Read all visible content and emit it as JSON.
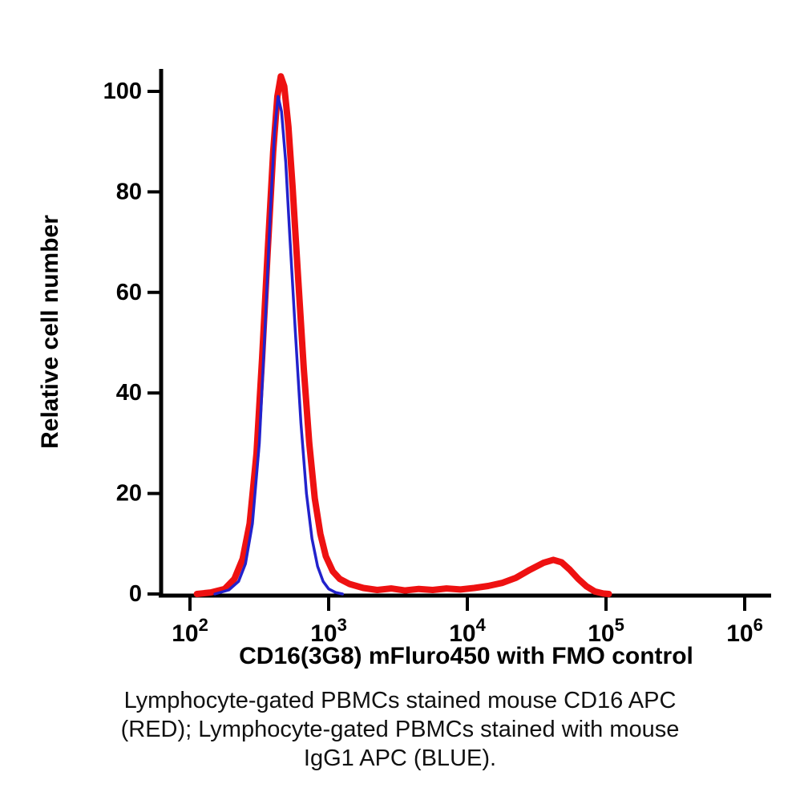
{
  "figure": {
    "background": "#ffffff",
    "caption": {
      "lines": [
        "Lymphocyte-gated PBMCs stained mouse CD16 APC",
        "(RED); Lymphocyte-gated PBMCs stained with mouse",
        "IgG1 APC (BLUE)."
      ]
    }
  },
  "chart_data": {
    "type": "line",
    "subtype": "flow-cytometry-histogram",
    "title": "",
    "xlabel": "CD16(3G8) mFluro450 with FMO control",
    "ylabel": "Relative cell number",
    "x_scale": "log10",
    "x_range_log10": [
      2,
      6
    ],
    "ylim": [
      0,
      100
    ],
    "grid": false,
    "legend": "none (series colors described in caption)",
    "y_ticks": [
      0,
      20,
      40,
      60,
      80,
      100
    ],
    "x_ticks": [
      {
        "mantissa": "10",
        "exponent": "2",
        "log10": 2
      },
      {
        "mantissa": "10",
        "exponent": "3",
        "log10": 3
      },
      {
        "mantissa": "10",
        "exponent": "4",
        "log10": 4
      },
      {
        "mantissa": "10",
        "exponent": "5",
        "log10": 5
      },
      {
        "mantissa": "10",
        "exponent": "6",
        "log10": 6
      }
    ],
    "axis_color": "#000000",
    "series": [
      {
        "name": "Lymphocyte-gated PBMCs stained mouse CD16 APC (RED)",
        "id": "cd16-apc-curve",
        "color": "#ee1111",
        "line_width": 8,
        "peaks": [
          {
            "x_approx": 450,
            "height": 103
          },
          {
            "x_approx": 42000,
            "height": 6.8
          }
        ],
        "points_log10x_y": [
          [
            2.05,
            0
          ],
          [
            2.15,
            0.3
          ],
          [
            2.25,
            1
          ],
          [
            2.32,
            3
          ],
          [
            2.38,
            7
          ],
          [
            2.43,
            14
          ],
          [
            2.48,
            28
          ],
          [
            2.52,
            47
          ],
          [
            2.56,
            68
          ],
          [
            2.6,
            88
          ],
          [
            2.63,
            99
          ],
          [
            2.655,
            103
          ],
          [
            2.68,
            101
          ],
          [
            2.71,
            93
          ],
          [
            2.74,
            81
          ],
          [
            2.78,
            63
          ],
          [
            2.82,
            45
          ],
          [
            2.86,
            30
          ],
          [
            2.9,
            19
          ],
          [
            2.94,
            12
          ],
          [
            2.98,
            7.5
          ],
          [
            3.03,
            4.5
          ],
          [
            3.08,
            3
          ],
          [
            3.15,
            2
          ],
          [
            3.25,
            1.2
          ],
          [
            3.35,
            0.8
          ],
          [
            3.45,
            1.1
          ],
          [
            3.55,
            0.7
          ],
          [
            3.65,
            1.0
          ],
          [
            3.75,
            0.8
          ],
          [
            3.85,
            1.1
          ],
          [
            3.95,
            0.9
          ],
          [
            4.05,
            1.2
          ],
          [
            4.15,
            1.6
          ],
          [
            4.25,
            2.2
          ],
          [
            4.35,
            3.2
          ],
          [
            4.45,
            4.8
          ],
          [
            4.55,
            6.2
          ],
          [
            4.62,
            6.8
          ],
          [
            4.68,
            6.3
          ],
          [
            4.74,
            4.8
          ],
          [
            4.8,
            3.0
          ],
          [
            4.86,
            1.5
          ],
          [
            4.92,
            0.5
          ],
          [
            4.98,
            0.1
          ],
          [
            5.02,
            0
          ]
        ]
      },
      {
        "name": "Lymphocyte-gated PBMCs stained with mouse IgG1 APC (BLUE)",
        "id": "igg1-apc-curve",
        "color": "#2222cc",
        "line_width": 3.5,
        "peaks": [
          {
            "x_approx": 430,
            "height": 99
          }
        ],
        "points_log10x_y": [
          [
            2.18,
            0
          ],
          [
            2.28,
            0.8
          ],
          [
            2.35,
            2.5
          ],
          [
            2.4,
            6
          ],
          [
            2.45,
            14
          ],
          [
            2.5,
            30
          ],
          [
            2.54,
            52
          ],
          [
            2.58,
            76
          ],
          [
            2.61,
            92
          ],
          [
            2.635,
            99
          ],
          [
            2.66,
            96
          ],
          [
            2.69,
            86
          ],
          [
            2.72,
            71
          ],
          [
            2.76,
            52
          ],
          [
            2.8,
            34
          ],
          [
            2.84,
            20
          ],
          [
            2.88,
            11
          ],
          [
            2.92,
            5.5
          ],
          [
            2.96,
            2.5
          ],
          [
            3.0,
            1
          ],
          [
            3.05,
            0.3
          ],
          [
            3.1,
            0
          ]
        ]
      }
    ]
  }
}
